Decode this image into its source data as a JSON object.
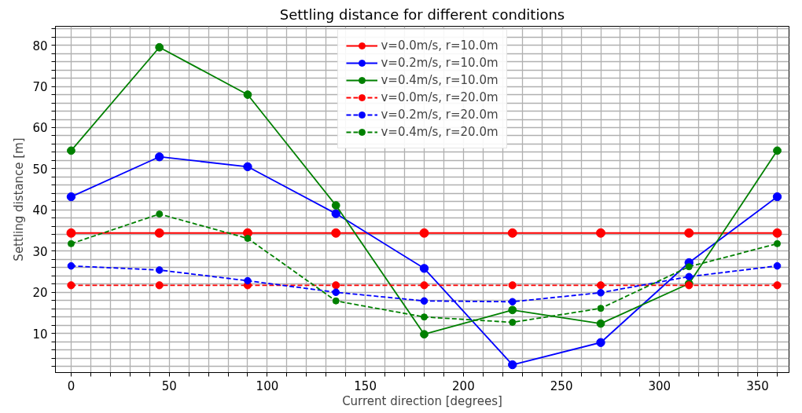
{
  "chart_data": {
    "type": "line",
    "title": "Settling distance for different conditions",
    "xlabel": "Current direction [degrees]",
    "ylabel": "Settling distance [m]",
    "x": [
      0,
      45,
      90,
      135,
      180,
      225,
      270,
      315,
      360
    ],
    "series": [
      {
        "name": "v=0.0m/s, r=10.0m",
        "color": "#ff0000",
        "line_style": "solid",
        "values": [
          34.4,
          34.4,
          34.4,
          34.4,
          34.4,
          34.4,
          34.4,
          34.4,
          34.4
        ]
      },
      {
        "name": "v=0.2m/s, r=10.0m",
        "color": "#0000ff",
        "line_style": "solid",
        "values": [
          43.2,
          52.9,
          50.5,
          39.1,
          25.8,
          2.4,
          7.8,
          27.2,
          43.2
        ]
      },
      {
        "name": "v=0.4m/s, r=10.0m",
        "color": "#008000",
        "line_style": "solid",
        "values": [
          54.4,
          79.5,
          68.0,
          41.1,
          9.8,
          15.7,
          12.4,
          22.1,
          54.4
        ]
      },
      {
        "name": "v=0.0m/s, r=20.0m",
        "color": "#ff0000",
        "line_style": "dashed",
        "values": [
          21.7,
          21.7,
          21.7,
          21.7,
          21.7,
          21.7,
          21.7,
          21.7,
          21.7
        ]
      },
      {
        "name": "v=0.2m/s, r=20.0m",
        "color": "#0000ff",
        "line_style": "dashed",
        "values": [
          26.4,
          25.4,
          22.8,
          20.0,
          17.9,
          17.7,
          19.9,
          23.8,
          26.4
        ]
      },
      {
        "name": "v=0.4m/s, r=20.0m",
        "color": "#008000",
        "line_style": "dashed",
        "values": [
          31.8,
          39.0,
          33.1,
          17.9,
          14.0,
          12.7,
          16.1,
          26.2,
          31.8
        ]
      }
    ],
    "xlim": [
      -8,
      366
    ],
    "ylim": [
      0.5,
      84.6
    ],
    "xticks": [
      0,
      {
        "value": 10,
        "label": null
      },
      {
        "value": 20,
        "label": null
      },
      {
        "value": 30,
        "label": null
      },
      {
        "value": 40,
        "label": null
      },
      50,
      {
        "value": 60,
        "label": null
      },
      {
        "value": 70,
        "label": null
      },
      {
        "value": 80,
        "label": null
      },
      {
        "value": 90,
        "label": null
      },
      100,
      {
        "value": 110,
        "label": null
      },
      {
        "value": 120,
        "label": null
      },
      {
        "value": 130,
        "label": null
      },
      {
        "value": 140,
        "label": null
      },
      150,
      {
        "value": 160,
        "label": null
      },
      {
        "value": 170,
        "label": null
      },
      {
        "value": 180,
        "label": null
      },
      {
        "value": 190,
        "label": null
      },
      200,
      {
        "value": 210,
        "label": null
      },
      {
        "value": 220,
        "label": null
      },
      {
        "value": 230,
        "label": null
      },
      {
        "value": 240,
        "label": null
      },
      250,
      {
        "value": 260,
        "label": null
      },
      {
        "value": 270,
        "label": null
      },
      {
        "value": 280,
        "label": null
      },
      {
        "value": 290,
        "label": null
      },
      300,
      {
        "value": 310,
        "label": null
      },
      {
        "value": 320,
        "label": null
      },
      {
        "value": 330,
        "label": null
      },
      {
        "value": 340,
        "label": null
      },
      350,
      {
        "value": 360,
        "label": null
      }
    ],
    "yticks": [
      {
        "value": 2,
        "label": null
      },
      {
        "value": 4,
        "label": null
      },
      {
        "value": 6,
        "label": null
      },
      {
        "value": 8,
        "label": null
      },
      10,
      {
        "value": 12,
        "label": null
      },
      {
        "value": 14,
        "label": null
      },
      {
        "value": 16,
        "label": null
      },
      {
        "value": 18,
        "label": null
      },
      20,
      {
        "value": 22,
        "label": null
      },
      {
        "value": 24,
        "label": null
      },
      {
        "value": 26,
        "label": null
      },
      {
        "value": 28,
        "label": null
      },
      30,
      {
        "value": 32,
        "label": null
      },
      {
        "value": 34,
        "label": null
      },
      {
        "value": 36,
        "label": null
      },
      {
        "value": 38,
        "label": null
      },
      40,
      {
        "value": 42,
        "label": null
      },
      {
        "value": 44,
        "label": null
      },
      {
        "value": 46,
        "label": null
      },
      {
        "value": 48,
        "label": null
      },
      50,
      {
        "value": 52,
        "label": null
      },
      {
        "value": 54,
        "label": null
      },
      {
        "value": 56,
        "label": null
      },
      {
        "value": 58,
        "label": null
      },
      60,
      {
        "value": 62,
        "label": null
      },
      {
        "value": 64,
        "label": null
      },
      {
        "value": 66,
        "label": null
      },
      {
        "value": 68,
        "label": null
      },
      70,
      {
        "value": 72,
        "label": null
      },
      {
        "value": 74,
        "label": null
      },
      {
        "value": 76,
        "label": null
      },
      {
        "value": 78,
        "label": null
      },
      80,
      {
        "value": 82,
        "label": null
      },
      {
        "value": 84,
        "label": null
      }
    ],
    "grid": true,
    "legend": "top",
    "marker": "circle"
  }
}
